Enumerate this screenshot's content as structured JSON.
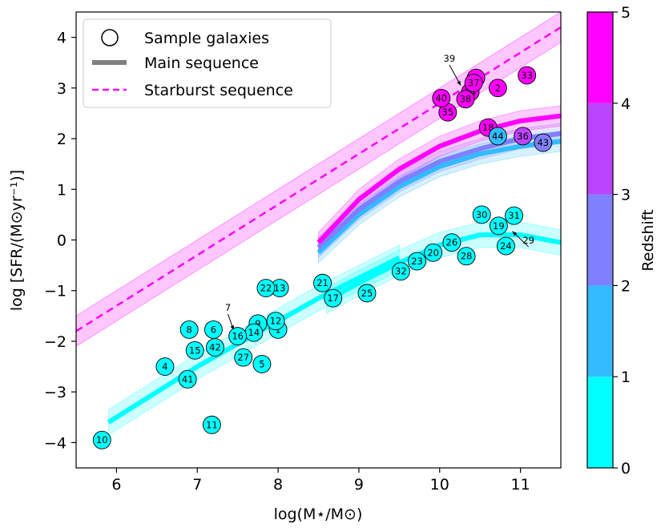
{
  "chart_data": {
    "type": "scatter",
    "xlabel": "log(M⋆/M⊙)",
    "ylabel": "log [SFR/(M⊙yr⁻¹)]",
    "xlim": [
      5.5,
      11.5
    ],
    "ylim": [
      -4.5,
      4.5
    ],
    "xticks": [
      6,
      7,
      8,
      9,
      10,
      11
    ],
    "yticks": [
      -4,
      -3,
      -2,
      -1,
      0,
      1,
      2,
      3,
      4
    ],
    "grid": false,
    "legend_position": "top-left",
    "legend": [
      {
        "label": "Sample galaxies",
        "kind": "open-circle"
      },
      {
        "label": "Main sequence",
        "kind": "thick-gray-line"
      },
      {
        "label": "Starburst sequence",
        "kind": "dashed-magenta-line"
      }
    ],
    "colorbar": {
      "label": "Redshift",
      "ticks": [
        0,
        1,
        2,
        3,
        4,
        5
      ],
      "bins": [
        {
          "from": 0,
          "to": 1,
          "color": "#00ffff"
        },
        {
          "from": 1,
          "to": 2,
          "color": "#33bbff"
        },
        {
          "from": 2,
          "to": 3,
          "color": "#7f80ff"
        },
        {
          "from": 3,
          "to": 4,
          "color": "#bb44ff"
        },
        {
          "from": 4,
          "to": 5,
          "color": "#ff00ff"
        }
      ]
    },
    "starburst_sequence": {
      "x": [
        5.5,
        11.5
      ],
      "y": [
        -1.8,
        4.2
      ],
      "band": 0.3,
      "color": "#ff00ff"
    },
    "main_sequence": [
      {
        "z_bin": "0-1",
        "color": "#00ffff",
        "x": [
          5.9,
          6.5,
          7.0,
          7.5,
          8.0,
          8.5,
          9.0,
          9.5
        ],
        "y": [
          -3.6,
          -3.0,
          -2.5,
          -2.05,
          -1.6,
          -1.15,
          -0.75,
          -0.35
        ],
        "band": 0.25
      },
      {
        "z_bin": "0-1",
        "color": "#00ffff",
        "x": [
          8.6,
          9.0,
          9.5,
          10.0,
          10.5,
          11.0,
          11.5
        ],
        "y": [
          -1.2,
          -0.85,
          -0.45,
          -0.1,
          0.1,
          0.1,
          -0.05
        ],
        "band": 0.25
      },
      {
        "z_bin": "1-2",
        "color": "#33bbff",
        "x": [
          8.5,
          9.0,
          9.5,
          10.0,
          10.5,
          11.0,
          11.5
        ],
        "y": [
          -0.25,
          0.5,
          1.05,
          1.45,
          1.7,
          1.85,
          1.95
        ],
        "band": 0.2
      },
      {
        "z_bin": "2-3",
        "color": "#7f80ff",
        "x": [
          8.5,
          9.0,
          9.5,
          10.0,
          10.5,
          11.0,
          11.5
        ],
        "y": [
          -0.15,
          0.6,
          1.15,
          1.55,
          1.8,
          2.0,
          2.1
        ],
        "band": 0.2
      },
      {
        "z_bin": "4-5",
        "color": "#ff00ff",
        "x": [
          8.5,
          9.0,
          9.5,
          10.0,
          10.5,
          11.0,
          11.5
        ],
        "y": [
          -0.05,
          0.8,
          1.4,
          1.85,
          2.15,
          2.35,
          2.45
        ],
        "band": 0.2
      }
    ],
    "points": [
      {
        "id": "1",
        "x": 8.0,
        "y": -1.77,
        "z": 0.5
      },
      {
        "id": "2",
        "x": 10.72,
        "y": 3.0,
        "z": 4.5
      },
      {
        "id": "3",
        "x": 10.45,
        "y": 3.2,
        "z": 4.5
      },
      {
        "id": "4",
        "x": 6.6,
        "y": -2.5,
        "z": 0.5
      },
      {
        "id": "5",
        "x": 7.8,
        "y": -2.45,
        "z": 0.5
      },
      {
        "id": "6",
        "x": 7.2,
        "y": -1.77,
        "z": 0.5
      },
      {
        "id": "7",
        "x": 7.33,
        "y": -1.7,
        "z": 0.5,
        "r": 0
      },
      {
        "id": "8",
        "x": 6.9,
        "y": -1.77,
        "z": 0.5
      },
      {
        "id": "9",
        "x": 7.75,
        "y": -1.65,
        "z": 0.5
      },
      {
        "id": "10",
        "x": 5.82,
        "y": -3.95,
        "z": 0.5
      },
      {
        "id": "11",
        "x": 7.18,
        "y": -3.65,
        "z": 0.5
      },
      {
        "id": "12",
        "x": 7.97,
        "y": -1.6,
        "z": 0.5
      },
      {
        "id": "13",
        "x": 8.02,
        "y": -0.95,
        "z": 0.5
      },
      {
        "id": "14",
        "x": 7.7,
        "y": -1.83,
        "z": 0.5
      },
      {
        "id": "15",
        "x": 6.97,
        "y": -2.18,
        "z": 0.5
      },
      {
        "id": "16",
        "x": 7.5,
        "y": -1.9,
        "z": 0.5
      },
      {
        "id": "17",
        "x": 8.68,
        "y": -1.15,
        "z": 0.5
      },
      {
        "id": "18",
        "x": 10.6,
        "y": 2.22,
        "z": 4.5
      },
      {
        "id": "19",
        "x": 10.73,
        "y": 0.28,
        "z": 0.5
      },
      {
        "id": "20",
        "x": 9.92,
        "y": -0.25,
        "z": 0.5
      },
      {
        "id": "21",
        "x": 8.55,
        "y": -0.85,
        "z": 0.5
      },
      {
        "id": "22",
        "x": 7.85,
        "y": -0.95,
        "z": 0.5
      },
      {
        "id": "23",
        "x": 9.72,
        "y": -0.42,
        "z": 0.5
      },
      {
        "id": "24",
        "x": 10.82,
        "y": -0.12,
        "z": 0.5
      },
      {
        "id": "25",
        "x": 9.1,
        "y": -1.05,
        "z": 0.5
      },
      {
        "id": "26",
        "x": 10.15,
        "y": -0.05,
        "z": 0.5
      },
      {
        "id": "27",
        "x": 7.57,
        "y": -2.32,
        "z": 0.5
      },
      {
        "id": "28",
        "x": 10.33,
        "y": -0.32,
        "z": 0.5
      },
      {
        "id": "29",
        "x": 10.92,
        "y": 0.12,
        "z": 0.5,
        "r": 0
      },
      {
        "id": "30",
        "x": 10.52,
        "y": 0.5,
        "z": 0.5
      },
      {
        "id": "31",
        "x": 10.92,
        "y": 0.48,
        "z": 0.5
      },
      {
        "id": "32",
        "x": 9.52,
        "y": -0.62,
        "z": 0.5
      },
      {
        "id": "33",
        "x": 11.08,
        "y": 3.25,
        "z": 4.5
      },
      {
        "id": "34",
        "x": 10.38,
        "y": 2.92,
        "z": 4.5
      },
      {
        "id": "35",
        "x": 10.1,
        "y": 2.52,
        "z": 4.5
      },
      {
        "id": "36",
        "x": 11.03,
        "y": 2.05,
        "z": 3.5
      },
      {
        "id": "37",
        "x": 10.42,
        "y": 3.1,
        "z": 4.5
      },
      {
        "id": "38",
        "x": 10.32,
        "y": 2.78,
        "z": 4.5
      },
      {
        "id": "39",
        "x": 10.26,
        "y": 3.0,
        "z": 4.5,
        "r": 0
      },
      {
        "id": "40",
        "x": 10.02,
        "y": 2.8,
        "z": 4.5
      },
      {
        "id": "41",
        "x": 6.88,
        "y": -2.75,
        "z": 0.5
      },
      {
        "id": "42",
        "x": 7.22,
        "y": -2.12,
        "z": 0.5
      },
      {
        "id": "43",
        "x": 11.28,
        "y": 1.92,
        "z": 2.5
      },
      {
        "id": "44",
        "x": 10.72,
        "y": 2.05,
        "z": 1.5
      }
    ],
    "annotations": [
      {
        "text": "39",
        "tx": 10.12,
        "ty": 3.52,
        "ax": 10.26,
        "ay": 3.05
      },
      {
        "text": "7",
        "tx": 7.38,
        "ty": -1.4,
        "ax": 7.45,
        "ay": -1.78
      },
      {
        "text": "29",
        "tx": 11.1,
        "ty": -0.07,
        "ax": 10.9,
        "ay": 0.17
      }
    ]
  }
}
